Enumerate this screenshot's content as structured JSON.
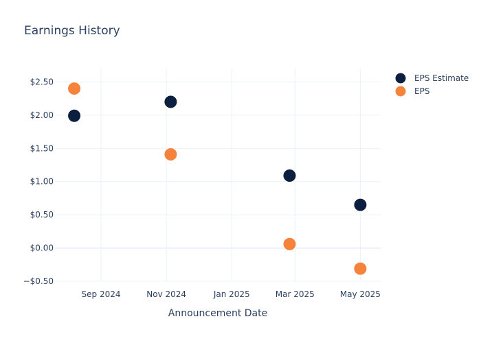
{
  "chart_data": {
    "type": "scatter",
    "title": "Earnings History",
    "xlabel": "Announcement Date",
    "ylabel": "",
    "x_ticks": [
      "2024-09-01",
      "2024-11-01",
      "2025-01-01",
      "2025-03-01",
      "2025-05-01"
    ],
    "x_tick_labels": [
      "Sep 2024",
      "Nov 2024",
      "Jan 2025",
      "Mar 2025",
      "May 2025"
    ],
    "xlim": [
      "2024-07-20",
      "2025-05-20"
    ],
    "y_ticks": [
      -0.5,
      0,
      0.5,
      1,
      1.5,
      2,
      2.5
    ],
    "y_tick_labels": [
      "−$0.50",
      "$0.00",
      "$0.50",
      "$1.00",
      "$1.50",
      "$2.00",
      "$2.50"
    ],
    "ylim": [
      -0.5,
      2.7
    ],
    "grid": true,
    "legend_position": "top-right",
    "series": [
      {
        "name": "EPS Estimate",
        "color": "#0d1f3f",
        "points": [
          {
            "x": "2024-08-07",
            "y": 1.99
          },
          {
            "x": "2024-11-05",
            "y": 2.2
          },
          {
            "x": "2025-02-24",
            "y": 1.09
          },
          {
            "x": "2025-05-01",
            "y": 0.65
          }
        ]
      },
      {
        "name": "EPS",
        "color": "#f5833c",
        "points": [
          {
            "x": "2024-08-07",
            "y": 2.4
          },
          {
            "x": "2024-11-05",
            "y": 1.41
          },
          {
            "x": "2025-02-24",
            "y": 0.06
          },
          {
            "x": "2025-05-01",
            "y": -0.31
          }
        ]
      }
    ]
  }
}
